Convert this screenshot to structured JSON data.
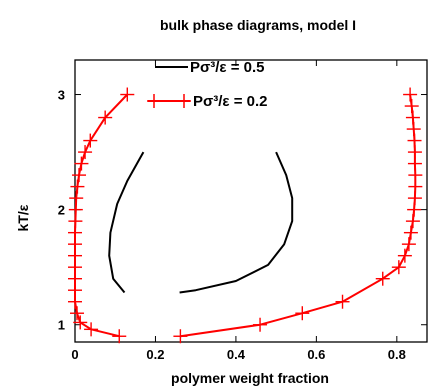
{
  "chart_data": {
    "type": "line",
    "title": "bulk phase diagrams, model I",
    "xlabel": "polymer weight fraction",
    "ylabel": "kT/ε",
    "xlim": [
      0,
      0.875
    ],
    "ylim": [
      0.85,
      3.3
    ],
    "xticks": [
      0,
      0.2,
      0.4,
      0.6,
      0.8
    ],
    "xtick_labels": [
      "0",
      "0.2",
      "0.4",
      "0.6",
      "0.8"
    ],
    "yticks": [
      1,
      2,
      3
    ],
    "ytick_labels": [
      "1",
      "2",
      "3"
    ],
    "grid": false,
    "legend_position": "top-center",
    "series": [
      {
        "name": "Pσ³/ε = 0.5",
        "color": "#000000",
        "marker": "none",
        "segments": [
          [
            [
              0.123,
              1.28
            ],
            [
              0.095,
              1.4
            ],
            [
              0.085,
              1.6
            ],
            [
              0.088,
              1.8
            ],
            [
              0.105,
              2.05
            ],
            [
              0.13,
              2.25
            ],
            [
              0.17,
              2.5
            ]
          ],
          [
            [
              0.5,
              2.5
            ],
            [
              0.525,
              2.3
            ],
            [
              0.54,
              2.1
            ],
            [
              0.54,
              1.9
            ],
            [
              0.52,
              1.7
            ],
            [
              0.48,
              1.52
            ],
            [
              0.4,
              1.38
            ],
            [
              0.3,
              1.3
            ],
            [
              0.26,
              1.28
            ]
          ]
        ]
      },
      {
        "name": "Pσ³/ε = 0.2",
        "color": "#ff0000",
        "marker": "plus",
        "segments": [
          [
            [
              0.11,
              0.9
            ],
            [
              0.04,
              0.96
            ],
            [
              0.013,
              1.02
            ],
            [
              0.005,
              1.1
            ],
            [
              0.0,
              1.2
            ],
            [
              0.0,
              1.3
            ],
            [
              0.0,
              1.4
            ],
            [
              0.0,
              1.5
            ],
            [
              0.0,
              1.6
            ],
            [
              0.0,
              1.7
            ],
            [
              0.0,
              1.8
            ],
            [
              0.001,
              1.9
            ],
            [
              0.002,
              2.0
            ],
            [
              0.003,
              2.1
            ],
            [
              0.006,
              2.2
            ],
            [
              0.01,
              2.3
            ],
            [
              0.016,
              2.4
            ],
            [
              0.025,
              2.5
            ],
            [
              0.038,
              2.6
            ],
            [
              0.075,
              2.8
            ],
            [
              0.13,
              3.0
            ]
          ],
          [
            [
              0.262,
              0.9
            ],
            [
              0.46,
              1.0
            ],
            [
              0.565,
              1.1
            ],
            [
              0.665,
              1.2
            ],
            [
              0.765,
              1.4
            ],
            [
              0.805,
              1.5
            ],
            [
              0.82,
              1.6
            ],
            [
              0.83,
              1.7
            ],
            [
              0.835,
              1.8
            ],
            [
              0.84,
              1.9
            ],
            [
              0.843,
              2.0
            ],
            [
              0.845,
              2.1
            ],
            [
              0.846,
              2.2
            ],
            [
              0.846,
              2.3
            ],
            [
              0.845,
              2.4
            ],
            [
              0.845,
              2.5
            ],
            [
              0.844,
              2.6
            ],
            [
              0.842,
              2.7
            ],
            [
              0.84,
              2.8
            ],
            [
              0.837,
              2.9
            ],
            [
              0.833,
              3.0
            ]
          ]
        ]
      }
    ]
  }
}
